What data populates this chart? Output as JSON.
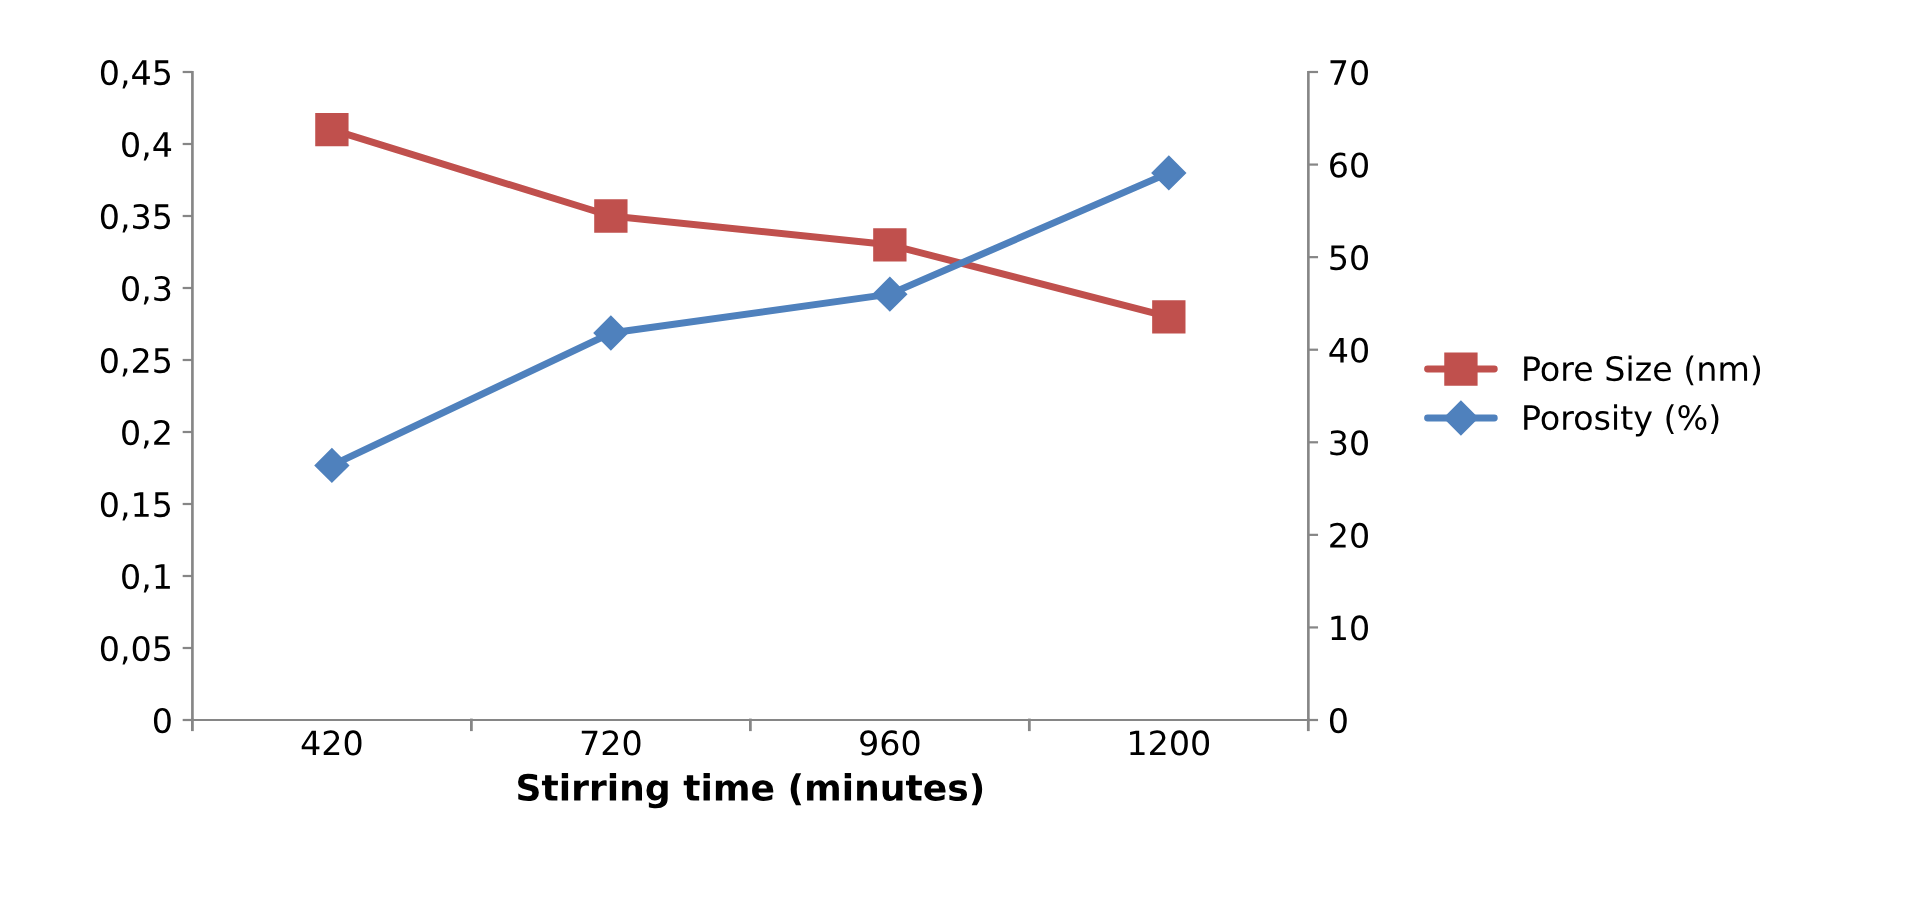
{
  "chart_data": {
    "type": "line",
    "xlabel": "Stirring time (minutes)",
    "categories": [
      "420",
      "720",
      "960",
      "1200"
    ],
    "series": [
      {
        "name": "Pore Size (nm)",
        "color": "#c0504d",
        "values": [
          0.41,
          0.35,
          0.33,
          0.28
        ],
        "marker": "square"
      },
      {
        "name": "Porosity (%)",
        "color": "#4f81bd",
        "values": [
          27.5,
          41.8,
          46.0,
          59.1
        ],
        "marker": "diamond",
        "axis": "y2"
      }
    ],
    "ylim": [
      0,
      0.45
    ],
    "yticks": [
      0,
      {
        "value": 0.05,
        "label": "0,05"
      },
      {
        "value": 0.1,
        "label": "0,1"
      },
      {
        "value": 0.15,
        "label": "0,15"
      },
      {
        "value": 0.2,
        "label": "0,2"
      },
      {
        "value": 0.25,
        "label": "0,25"
      },
      {
        "value": 0.3,
        "label": "0,3"
      },
      {
        "value": 0.35,
        "label": "0,35"
      },
      {
        "value": 0.4,
        "label": "0,4"
      },
      {
        "value": 0.45,
        "label": "0,45"
      }
    ],
    "y2lim": [
      0,
      70
    ],
    "y2ticks": [
      0,
      10,
      20,
      30,
      40,
      50,
      60,
      70
    ],
    "grid": false,
    "legend": "right",
    "line_style": "solid"
  }
}
